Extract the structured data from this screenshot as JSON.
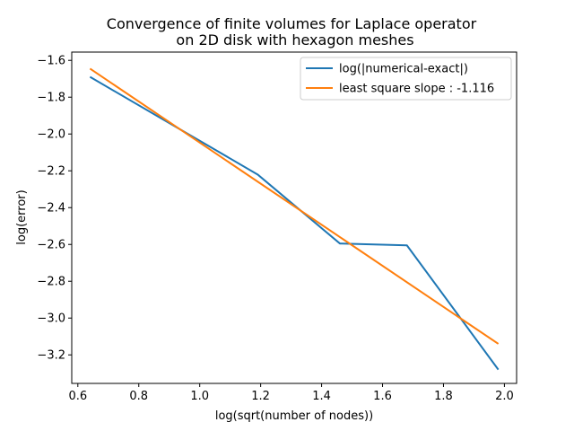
{
  "chart_data": {
    "type": "line",
    "title_line1": "Convergence of finite volumes for Laplace operator",
    "title_line2": "on 2D disk with hexagon meshes",
    "xlabel": "log(sqrt(number of nodes))",
    "ylabel": "log(error)",
    "xlim": [
      0.58,
      2.04
    ],
    "ylim": [
      -3.355,
      -1.555
    ],
    "xticks": [
      0.6,
      0.8,
      1.0,
      1.2,
      1.4,
      1.6,
      1.8,
      2.0
    ],
    "xtick_labels": [
      "0.6",
      "0.8",
      "1.0",
      "1.2",
      "1.4",
      "1.6",
      "1.8",
      "2.0"
    ],
    "yticks": [
      -1.6,
      -1.8,
      -2.0,
      -2.2,
      -2.4,
      -2.6,
      -2.8,
      -3.0,
      -3.2
    ],
    "ytick_labels": [
      "−1.6",
      "−1.8",
      "−2.0",
      "−2.2",
      "−2.4",
      "−2.6",
      "−2.8",
      "−3.0",
      "−3.2"
    ],
    "grid": false,
    "legend_position": "top-right",
    "series": [
      {
        "name": "log(|numerical-exact|)",
        "color": "#1f77b4",
        "x": [
          0.64,
          1.19,
          1.46,
          1.68,
          1.98
        ],
        "y": [
          -1.69,
          -2.22,
          -2.595,
          -2.605,
          -3.28
        ]
      },
      {
        "name": "least square slope : -1.116",
        "color": "#ff7f0e",
        "x": [
          0.64,
          1.98
        ],
        "y": [
          -1.645,
          -3.14
        ]
      }
    ]
  }
}
